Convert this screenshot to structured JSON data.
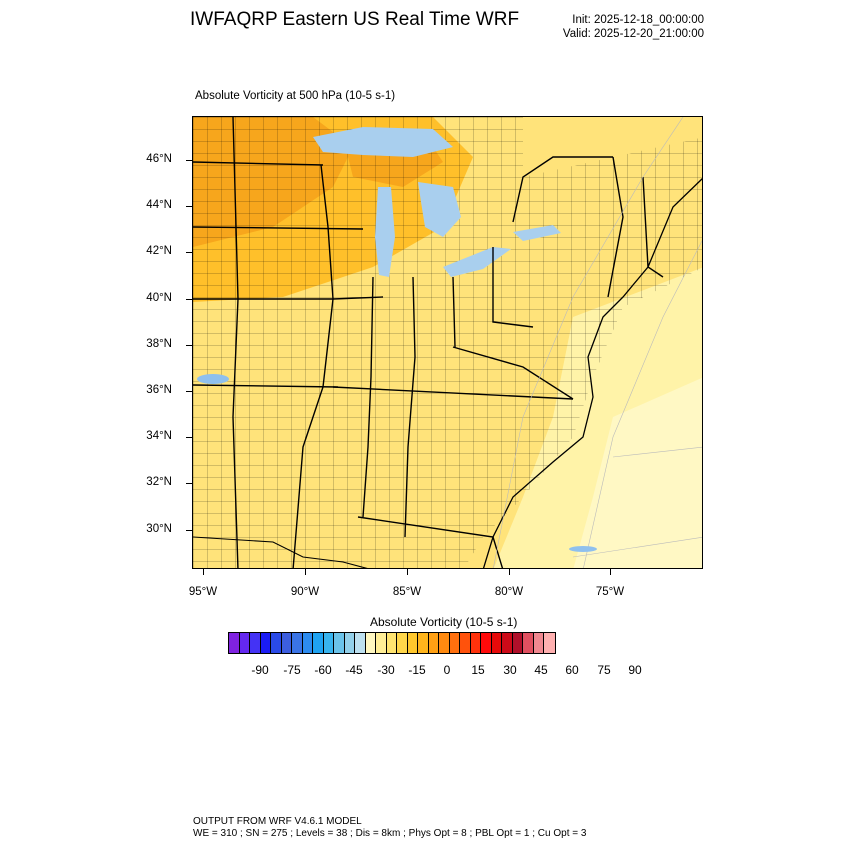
{
  "header": {
    "title": "IWFAQRP Eastern US Real Time WRF",
    "init": "Init: 2025-12-18_00:00:00",
    "valid": "Valid: 2025-12-20_21:00:00"
  },
  "field": {
    "title": "Absolute Vorticity at 500 hPa   (10-5 s-1)"
  },
  "map": {
    "lat_labels": [
      "46°N",
      "44°N",
      "42°N",
      "40°N",
      "38°N",
      "36°N",
      "34°N",
      "32°N",
      "30°N"
    ],
    "lon_labels": [
      "95°W",
      "90°W",
      "85°W",
      "80°W",
      "75°W"
    ],
    "colors": {
      "base": "#ffe37a",
      "light": "#fff3a8",
      "pale": "#fff8c4",
      "medium": "#ffd24d",
      "strong": "#ffc02a",
      "orange": "#f7a61c",
      "lake": "#a9cfee",
      "blue": "#8fc0ee",
      "lines": "#000000"
    }
  },
  "colorbar": {
    "title": "Absolute Vorticity  (10-5 s-1)",
    "labels": [
      "-90",
      "-75",
      "-60",
      "-45",
      "-30",
      "-15",
      "0",
      "15",
      "30",
      "45",
      "60",
      "75",
      "90"
    ],
    "colors": [
      "#7f22e0",
      "#6428f0",
      "#4433f5",
      "#1a1cf5",
      "#2a4ae8",
      "#3c5ee0",
      "#3a74e6",
      "#2d8cf0",
      "#1fa3f2",
      "#38b4ef",
      "#6bc3ea",
      "#93d0ea",
      "#bde0f0",
      "#fff7c0",
      "#ffee96",
      "#ffe470",
      "#ffd64a",
      "#ffc72c",
      "#ffb51c",
      "#ffa014",
      "#ff8a10",
      "#ff700e",
      "#ff520c",
      "#ff320c",
      "#ff0a0a",
      "#e60a0a",
      "#cc0a18",
      "#b0102a",
      "#e05060",
      "#f08890",
      "#ffb0b0"
    ]
  },
  "footer": {
    "line1": "OUTPUT FROM WRF V4.6.1 MODEL",
    "line2": "WE = 310 ; SN = 275 ; Levels = 38 ; Dis = 8km ; Phys Opt = 8 ; PBL Opt = 1 ; Cu Opt = 3"
  }
}
